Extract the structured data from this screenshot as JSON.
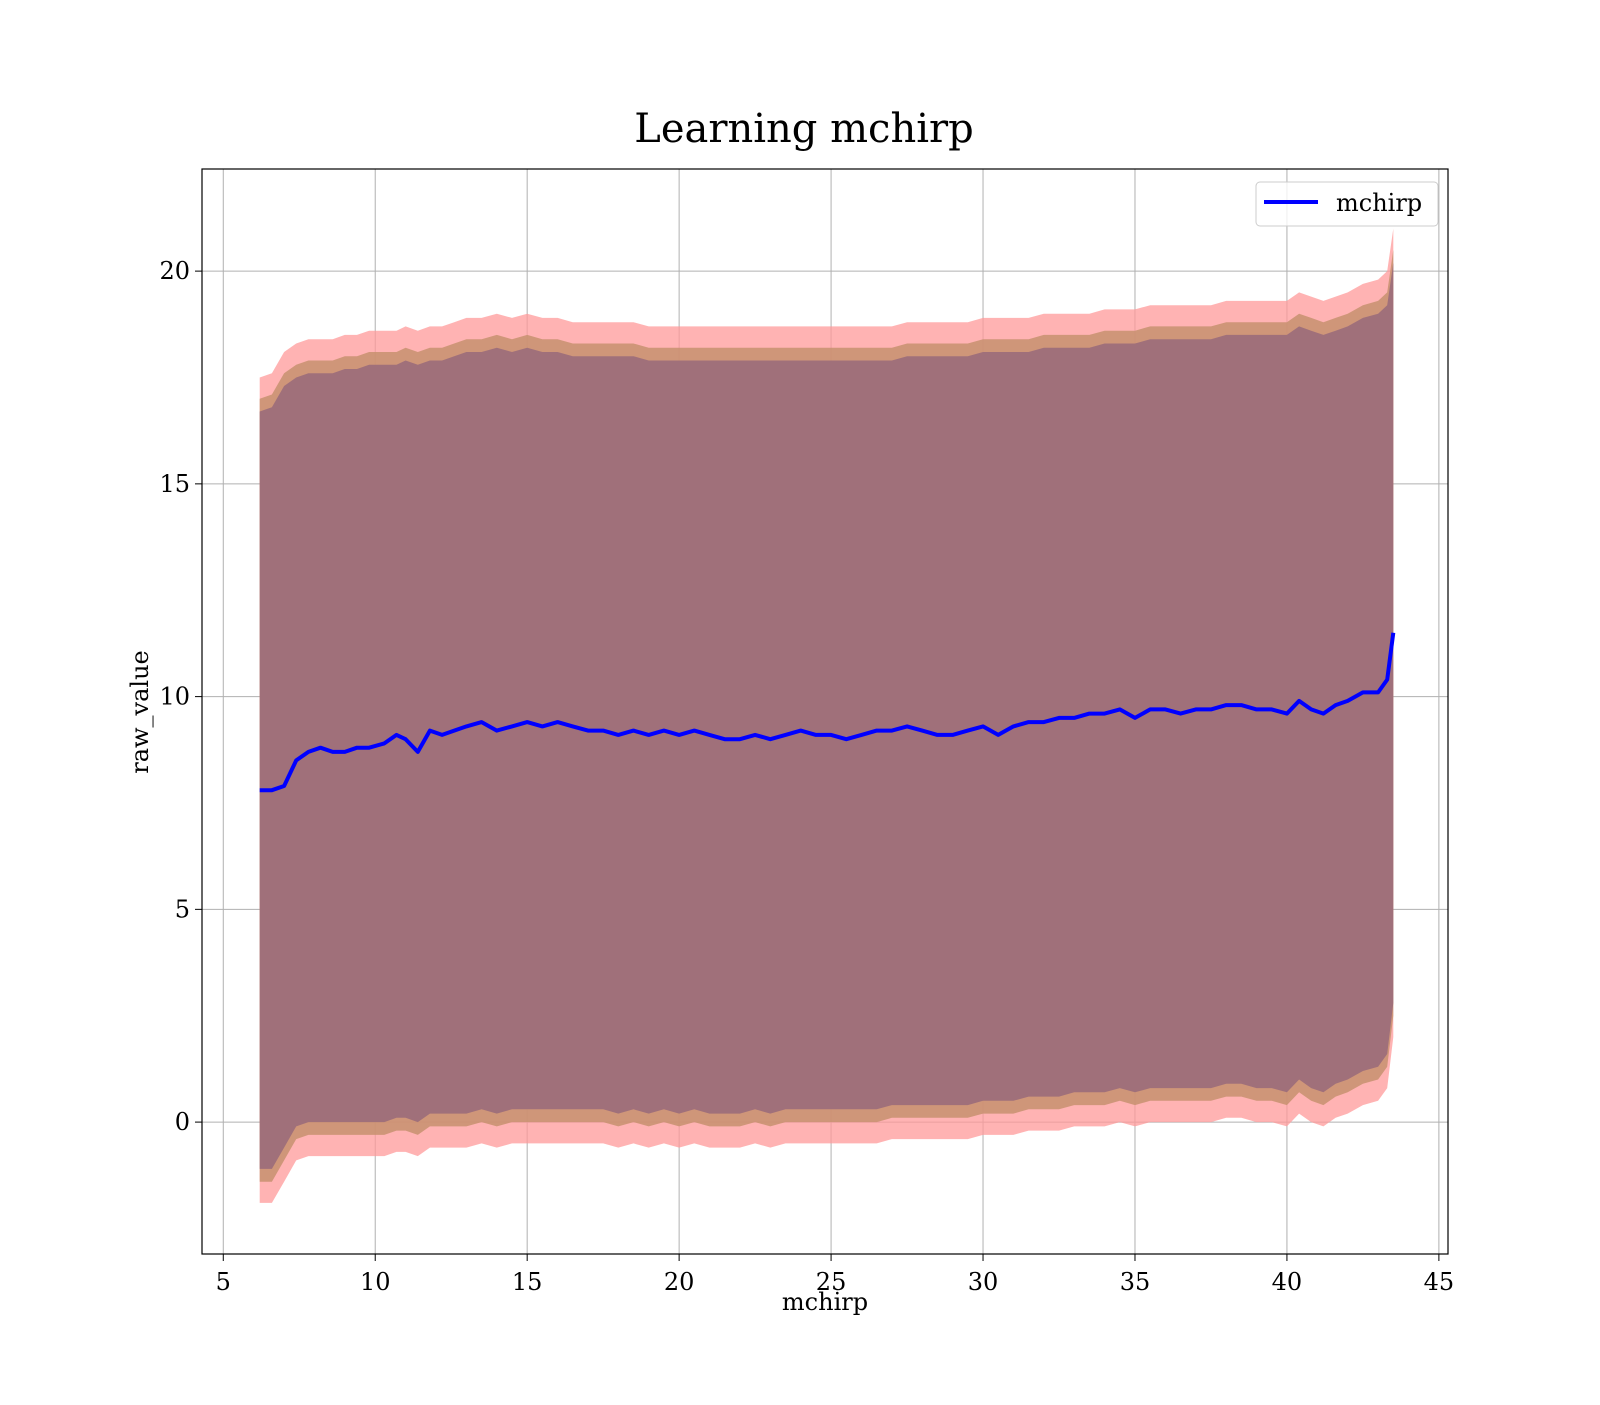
{
  "chart_data": {
    "type": "line",
    "title": "Learning mchirp",
    "xlabel": "mchirp",
    "ylabel": "raw_value",
    "xlim": [
      4.3,
      45.3
    ],
    "ylim": [
      -3.1,
      22.4
    ],
    "xticks": [
      5,
      10,
      15,
      20,
      25,
      30,
      35,
      40,
      45
    ],
    "yticks": [
      0,
      5,
      10,
      15,
      20
    ],
    "grid": true,
    "legend_position": "top-right",
    "colors": {
      "line": "#0000ff",
      "band_outer": "#ff9999",
      "band_middle": "#c7916f",
      "band_inner": "#a0707a",
      "grid": "#b0b0b0"
    },
    "series": [
      {
        "name": "mchirp",
        "x": [
          6.2,
          6.6,
          7.0,
          7.4,
          7.8,
          8.2,
          8.6,
          9.0,
          9.4,
          9.8,
          10.3,
          10.7,
          11.0,
          11.4,
          11.8,
          12.2,
          12.6,
          13.0,
          13.5,
          14.0,
          14.5,
          15.0,
          15.5,
          16.0,
          16.5,
          17.0,
          17.5,
          18.0,
          18.5,
          19.0,
          19.5,
          20.0,
          20.5,
          21.0,
          21.5,
          22.0,
          22.5,
          23.0,
          23.5,
          24.0,
          24.5,
          25.0,
          25.5,
          26.0,
          26.5,
          27.0,
          27.5,
          28.0,
          28.5,
          29.0,
          29.5,
          30.0,
          30.5,
          31.0,
          31.5,
          32.0,
          32.5,
          33.0,
          33.5,
          34.0,
          34.5,
          35.0,
          35.5,
          36.0,
          36.5,
          37.0,
          37.5,
          38.0,
          38.5,
          39.0,
          39.5,
          40.0,
          40.4,
          40.8,
          41.2,
          41.6,
          42.0,
          42.5,
          43.0,
          43.3,
          43.5
        ],
        "y": [
          7.8,
          7.8,
          7.9,
          8.5,
          8.7,
          8.8,
          8.7,
          8.7,
          8.8,
          8.8,
          8.9,
          9.1,
          9.0,
          8.7,
          9.2,
          9.1,
          9.2,
          9.3,
          9.4,
          9.2,
          9.3,
          9.4,
          9.3,
          9.4,
          9.3,
          9.2,
          9.2,
          9.1,
          9.2,
          9.1,
          9.2,
          9.1,
          9.2,
          9.1,
          9.0,
          9.0,
          9.1,
          9.0,
          9.1,
          9.2,
          9.1,
          9.1,
          9.0,
          9.1,
          9.2,
          9.2,
          9.3,
          9.2,
          9.1,
          9.1,
          9.2,
          9.3,
          9.1,
          9.3,
          9.4,
          9.4,
          9.5,
          9.5,
          9.6,
          9.6,
          9.7,
          9.5,
          9.7,
          9.7,
          9.6,
          9.7,
          9.7,
          9.8,
          9.8,
          9.7,
          9.7,
          9.6,
          9.9,
          9.7,
          9.6,
          9.8,
          9.9,
          10.1,
          10.1,
          10.4,
          11.5
        ]
      }
    ],
    "bands": [
      {
        "upper": [
          17.5,
          17.6,
          18.1,
          18.3,
          18.4,
          18.4,
          18.4,
          18.5,
          18.5,
          18.6,
          18.6,
          18.6,
          18.7,
          18.6,
          18.7,
          18.7,
          18.8,
          18.9,
          18.9,
          19.0,
          18.9,
          19.0,
          18.9,
          18.9,
          18.8,
          18.8,
          18.8,
          18.8,
          18.8,
          18.7,
          18.7,
          18.7,
          18.7,
          18.7,
          18.7,
          18.7,
          18.7,
          18.7,
          18.7,
          18.7,
          18.7,
          18.7,
          18.7,
          18.7,
          18.7,
          18.7,
          18.8,
          18.8,
          18.8,
          18.8,
          18.8,
          18.9,
          18.9,
          18.9,
          18.9,
          19.0,
          19.0,
          19.0,
          19.0,
          19.1,
          19.1,
          19.1,
          19.2,
          19.2,
          19.2,
          19.2,
          19.2,
          19.3,
          19.3,
          19.3,
          19.3,
          19.3,
          19.5,
          19.4,
          19.3,
          19.4,
          19.5,
          19.7,
          19.8,
          20.0,
          21.0
        ],
        "lower": [
          -1.9,
          -1.9,
          -1.4,
          -0.9,
          -0.8,
          -0.8,
          -0.8,
          -0.8,
          -0.8,
          -0.8,
          -0.8,
          -0.7,
          -0.7,
          -0.8,
          -0.6,
          -0.6,
          -0.6,
          -0.6,
          -0.5,
          -0.6,
          -0.5,
          -0.5,
          -0.5,
          -0.5,
          -0.5,
          -0.5,
          -0.5,
          -0.6,
          -0.5,
          -0.6,
          -0.5,
          -0.6,
          -0.5,
          -0.6,
          -0.6,
          -0.6,
          -0.5,
          -0.6,
          -0.5,
          -0.5,
          -0.5,
          -0.5,
          -0.5,
          -0.5,
          -0.5,
          -0.4,
          -0.4,
          -0.4,
          -0.4,
          -0.4,
          -0.4,
          -0.3,
          -0.3,
          -0.3,
          -0.2,
          -0.2,
          -0.2,
          -0.1,
          -0.1,
          -0.1,
          0.0,
          -0.1,
          0.0,
          0.0,
          0.0,
          0.0,
          0.0,
          0.1,
          0.1,
          0.0,
          0.0,
          -0.1,
          0.2,
          0.0,
          -0.1,
          0.1,
          0.2,
          0.4,
          0.5,
          0.8,
          2.0
        ]
      },
      {
        "upper": [
          17.0,
          17.1,
          17.6,
          17.8,
          17.9,
          17.9,
          17.9,
          18.0,
          18.0,
          18.1,
          18.1,
          18.1,
          18.2,
          18.1,
          18.2,
          18.2,
          18.3,
          18.4,
          18.4,
          18.5,
          18.4,
          18.5,
          18.4,
          18.4,
          18.3,
          18.3,
          18.3,
          18.3,
          18.3,
          18.2,
          18.2,
          18.2,
          18.2,
          18.2,
          18.2,
          18.2,
          18.2,
          18.2,
          18.2,
          18.2,
          18.2,
          18.2,
          18.2,
          18.2,
          18.2,
          18.2,
          18.3,
          18.3,
          18.3,
          18.3,
          18.3,
          18.4,
          18.4,
          18.4,
          18.4,
          18.5,
          18.5,
          18.5,
          18.5,
          18.6,
          18.6,
          18.6,
          18.7,
          18.7,
          18.7,
          18.7,
          18.7,
          18.8,
          18.8,
          18.8,
          18.8,
          18.8,
          19.0,
          18.9,
          18.8,
          18.9,
          19.0,
          19.2,
          19.3,
          19.5,
          20.5
        ],
        "lower": [
          -1.4,
          -1.4,
          -0.9,
          -0.4,
          -0.3,
          -0.3,
          -0.3,
          -0.3,
          -0.3,
          -0.3,
          -0.3,
          -0.2,
          -0.2,
          -0.3,
          -0.1,
          -0.1,
          -0.1,
          -0.1,
          0.0,
          -0.1,
          0.0,
          0.0,
          0.0,
          0.0,
          0.0,
          0.0,
          0.0,
          -0.1,
          0.0,
          -0.1,
          0.0,
          -0.1,
          0.0,
          -0.1,
          -0.1,
          -0.1,
          0.0,
          -0.1,
          0.0,
          0.0,
          0.0,
          0.0,
          0.0,
          0.0,
          0.0,
          0.1,
          0.1,
          0.1,
          0.1,
          0.1,
          0.1,
          0.2,
          0.2,
          0.2,
          0.3,
          0.3,
          0.3,
          0.4,
          0.4,
          0.4,
          0.5,
          0.4,
          0.5,
          0.5,
          0.5,
          0.5,
          0.5,
          0.6,
          0.6,
          0.5,
          0.5,
          0.4,
          0.7,
          0.5,
          0.4,
          0.6,
          0.7,
          0.9,
          1.0,
          1.3,
          2.5
        ]
      },
      {
        "upper": [
          16.7,
          16.8,
          17.3,
          17.5,
          17.6,
          17.6,
          17.6,
          17.7,
          17.7,
          17.8,
          17.8,
          17.8,
          17.9,
          17.8,
          17.9,
          17.9,
          18.0,
          18.1,
          18.1,
          18.2,
          18.1,
          18.2,
          18.1,
          18.1,
          18.0,
          18.0,
          18.0,
          18.0,
          18.0,
          17.9,
          17.9,
          17.9,
          17.9,
          17.9,
          17.9,
          17.9,
          17.9,
          17.9,
          17.9,
          17.9,
          17.9,
          17.9,
          17.9,
          17.9,
          17.9,
          17.9,
          18.0,
          18.0,
          18.0,
          18.0,
          18.0,
          18.1,
          18.1,
          18.1,
          18.1,
          18.2,
          18.2,
          18.2,
          18.2,
          18.3,
          18.3,
          18.3,
          18.4,
          18.4,
          18.4,
          18.4,
          18.4,
          18.5,
          18.5,
          18.5,
          18.5,
          18.5,
          18.7,
          18.6,
          18.5,
          18.6,
          18.7,
          18.9,
          19.0,
          19.2,
          20.2
        ],
        "lower": [
          -1.1,
          -1.1,
          -0.6,
          -0.1,
          0.0,
          0.0,
          0.0,
          0.0,
          0.0,
          0.0,
          0.0,
          0.1,
          0.1,
          0.0,
          0.2,
          0.2,
          0.2,
          0.2,
          0.3,
          0.2,
          0.3,
          0.3,
          0.3,
          0.3,
          0.3,
          0.3,
          0.3,
          0.2,
          0.3,
          0.2,
          0.3,
          0.2,
          0.3,
          0.2,
          0.2,
          0.2,
          0.3,
          0.2,
          0.3,
          0.3,
          0.3,
          0.3,
          0.3,
          0.3,
          0.3,
          0.4,
          0.4,
          0.4,
          0.4,
          0.4,
          0.4,
          0.5,
          0.5,
          0.5,
          0.6,
          0.6,
          0.6,
          0.7,
          0.7,
          0.7,
          0.8,
          0.7,
          0.8,
          0.8,
          0.8,
          0.8,
          0.8,
          0.9,
          0.9,
          0.8,
          0.8,
          0.7,
          1.0,
          0.8,
          0.7,
          0.9,
          1.0,
          1.2,
          1.3,
          1.6,
          2.8
        ]
      }
    ]
  }
}
